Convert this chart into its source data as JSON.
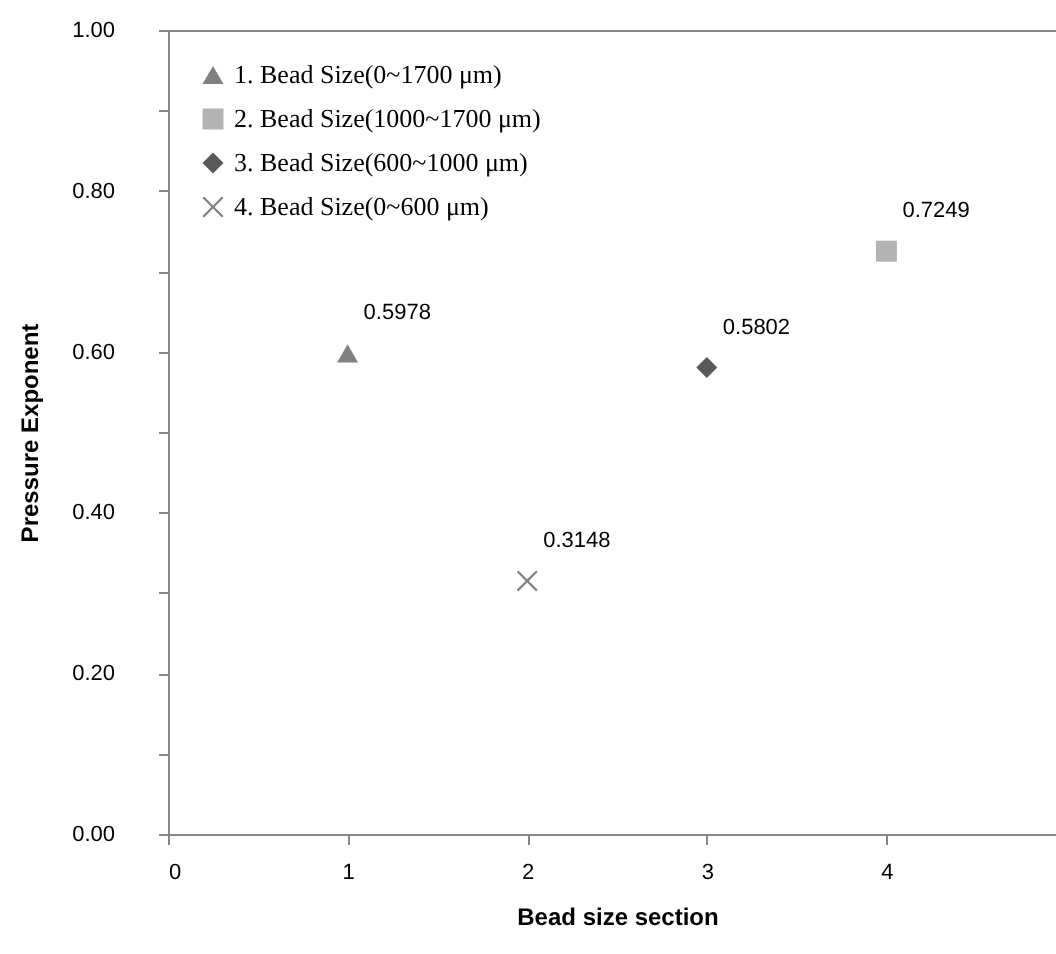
{
  "chart_data": {
    "type": "scatter",
    "xlabel": "Bead size section",
    "ylabel": "Pressure Exponent",
    "xlim": [
      0,
      5
    ],
    "xticks": [
      0,
      1,
      2,
      3,
      4
    ],
    "ylim": [
      0,
      1
    ],
    "yticks": [
      {
        "value": 0,
        "label": "0.00"
      },
      {
        "value": 0.1,
        "label": null
      },
      {
        "value": 0.2,
        "label": "0.20"
      },
      {
        "value": 0.3,
        "label": null
      },
      {
        "value": 0.4,
        "label": "0.40"
      },
      {
        "value": 0.5,
        "label": null
      },
      {
        "value": 0.6,
        "label": "0.60"
      },
      {
        "value": 0.7,
        "label": null
      },
      {
        "value": 0.8,
        "label": "0.80"
      },
      {
        "value": 0.9,
        "label": null
      },
      {
        "value": 1,
        "label": "1.00"
      }
    ],
    "grid": false,
    "legend": "top left",
    "data_labels": true,
    "series": [
      {
        "name": "1. Bead Size(0~1700 μm)",
        "color": "#808080",
        "marker": "triangle",
        "x": [
          1
        ],
        "values": [
          0.5978
        ]
      },
      {
        "name": "2. Bead Size(1000~1700 μm)",
        "color": "#b3b3b3",
        "marker": "square",
        "x": [
          4
        ],
        "values": [
          0.7249
        ]
      },
      {
        "name": "3. Bead Size(600~1000 μm)",
        "color": "#595959",
        "marker": "diamond",
        "x": [
          3
        ],
        "values": [
          0.5802
        ]
      },
      {
        "name": "4. Bead Size(0~600 μm)",
        "color": "#808080",
        "marker": "cross",
        "x": [
          2
        ],
        "values": [
          0.3148
        ]
      }
    ]
  }
}
